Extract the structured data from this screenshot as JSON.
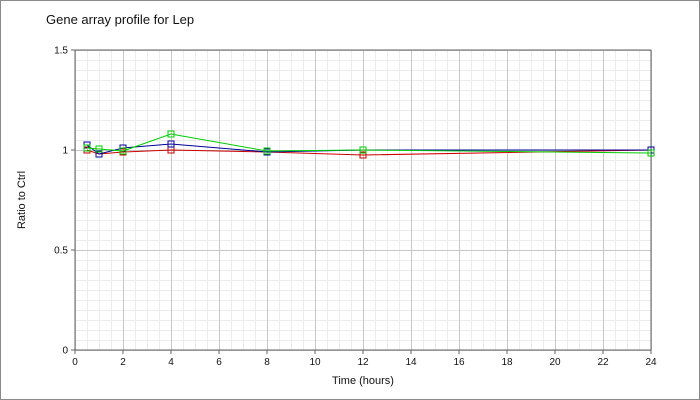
{
  "chart_data": {
    "type": "line",
    "title": "Gene array profile for Lep",
    "xlabel": "Time (hours)",
    "ylabel": "Ratio to Ctrl",
    "xlim": [
      0,
      24
    ],
    "ylim": [
      0,
      1.5
    ],
    "x_ticks": [
      0,
      2,
      4,
      6,
      8,
      10,
      12,
      14,
      16,
      18,
      20,
      22,
      24
    ],
    "x_tick_labels": [
      "0",
      "2",
      "4",
      "6",
      "8",
      "10",
      "12",
      "14",
      "16",
      "18",
      "20",
      "22",
      "24"
    ],
    "y_ticks": [
      0,
      0.5,
      1,
      1.5
    ],
    "y_tick_labels": [
      "0",
      "0.5",
      "1",
      "1.5"
    ],
    "grid": true,
    "marker": "square",
    "series": [
      {
        "color": "#cc0000",
        "x": [
          0.5,
          1,
          2,
          4,
          8,
          12,
          24
        ],
        "y": [
          1.0,
          0.98,
          0.99,
          1.0,
          0.99,
          0.975,
          1.0
        ]
      },
      {
        "color": "#000099",
        "x": [
          0.5,
          1,
          2,
          4,
          8,
          12,
          24
        ],
        "y": [
          1.025,
          0.98,
          1.01,
          1.03,
          0.99,
          1.0,
          1.0
        ]
      },
      {
        "color": "#00cc00",
        "x": [
          0.5,
          1,
          2,
          4,
          8,
          12,
          24
        ],
        "y": [
          1.01,
          1.005,
          0.995,
          1.08,
          0.995,
          1.0,
          0.985
        ]
      }
    ]
  }
}
